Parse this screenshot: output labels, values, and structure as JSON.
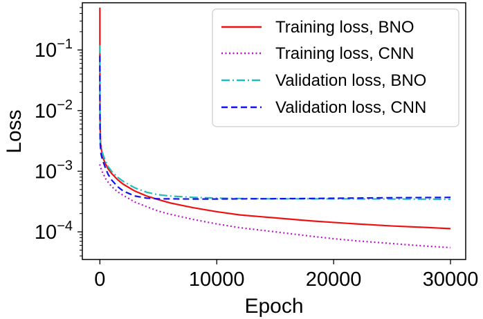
{
  "chart_data": {
    "type": "line",
    "title": "",
    "xlabel": "Epoch",
    "ylabel": "Loss",
    "xlim": [
      -1500,
      31300
    ],
    "ylim": [
      3.5e-05,
      0.6
    ],
    "yscale": "log",
    "grid": false,
    "legend_position": "top-right",
    "x_ticks": [
      {
        "value": 0,
        "label": "0"
      },
      {
        "value": 10000,
        "label": "10000"
      },
      {
        "value": 20000,
        "label": "20000"
      },
      {
        "value": 30000,
        "label": "30000"
      }
    ],
    "y_ticks": [
      {
        "value": 0.1,
        "base": "10",
        "exp": "−1"
      },
      {
        "value": 0.01,
        "base": "10",
        "exp": "−2"
      },
      {
        "value": 0.001,
        "base": "10",
        "exp": "−3"
      },
      {
        "value": 0.0001,
        "base": "10",
        "exp": "−4"
      }
    ],
    "series": [
      {
        "name": "Training loss, BNO",
        "color": "#ee1111",
        "dash": "solid",
        "x": [
          0,
          1,
          10,
          30,
          60,
          100,
          200,
          300,
          500,
          700,
          1000,
          1500,
          2000,
          3000,
          4000,
          5000,
          6000,
          8000,
          10000,
          12000,
          15000,
          18000,
          20000,
          22000,
          25000,
          28000,
          30000
        ],
        "values": [
          0.5,
          0.1,
          0.01,
          0.005,
          0.003,
          0.0025,
          0.0019,
          0.0016,
          0.0013,
          0.0011,
          0.00092,
          0.00073,
          0.00061,
          0.00047,
          0.00039,
          0.00034,
          0.0003,
          0.00025,
          0.000215,
          0.00019,
          0.00017,
          0.000152,
          0.000143,
          0.000135,
          0.000125,
          0.000118,
          0.000113
        ]
      },
      {
        "name": "Training loss, CNN",
        "color": "#bb11cc",
        "dash": "dotted",
        "x": [
          0,
          10,
          50,
          100,
          200,
          300,
          500,
          700,
          1000,
          1500,
          2000,
          3000,
          4000,
          5000,
          6000,
          8000,
          10000,
          12000,
          15000,
          18000,
          20000,
          22000,
          25000,
          28000,
          30000
        ],
        "values": [
          0.0013,
          0.00125,
          0.00115,
          0.0011,
          0.00098,
          0.0009,
          0.00075,
          0.00066,
          0.00056,
          0.00046,
          0.0004,
          0.00031,
          0.00026,
          0.00022,
          0.000195,
          0.00016,
          0.000135,
          0.000117,
          0.0001,
          8.5e-05,
          7.7e-05,
          7.1e-05,
          6.4e-05,
          5.8e-05,
          5.5e-05
        ]
      },
      {
        "name": "Validation loss, BNO",
        "color": "#22bbbb",
        "dash": "dashdot",
        "x": [
          0,
          1,
          10,
          30,
          60,
          100,
          200,
          300,
          500,
          700,
          1000,
          1500,
          2000,
          3000,
          4000,
          5000,
          6000,
          8000,
          10000,
          12000,
          15000,
          18000,
          20000,
          25000,
          30000
        ],
        "values": [
          0.12,
          0.04,
          0.006,
          0.0033,
          0.0027,
          0.0025,
          0.0021,
          0.0018,
          0.00145,
          0.0012,
          0.001,
          0.0008,
          0.00068,
          0.00053,
          0.00045,
          0.00041,
          0.00039,
          0.00037,
          0.00036,
          0.000355,
          0.00035,
          0.00035,
          0.00035,
          0.000348,
          0.000345
        ]
      },
      {
        "name": "Validation loss, CNN",
        "color": "#1111ee",
        "dash": "dashed",
        "x": [
          0,
          1,
          10,
          30,
          60,
          100,
          200,
          300,
          500,
          700,
          1000,
          1500,
          2000,
          3000,
          4000,
          5000,
          6000,
          8000,
          10000,
          12000,
          15000,
          18000,
          20000,
          25000,
          30000
        ],
        "values": [
          0.08,
          0.03,
          0.005,
          0.0028,
          0.0024,
          0.0019,
          0.0016,
          0.0014,
          0.0011,
          0.00089,
          0.00072,
          0.00056,
          0.00047,
          0.00039,
          0.00036,
          0.00035,
          0.00035,
          0.000348,
          0.000348,
          0.00035,
          0.000352,
          0.000355,
          0.000358,
          0.000365,
          0.00037
        ]
      }
    ]
  }
}
